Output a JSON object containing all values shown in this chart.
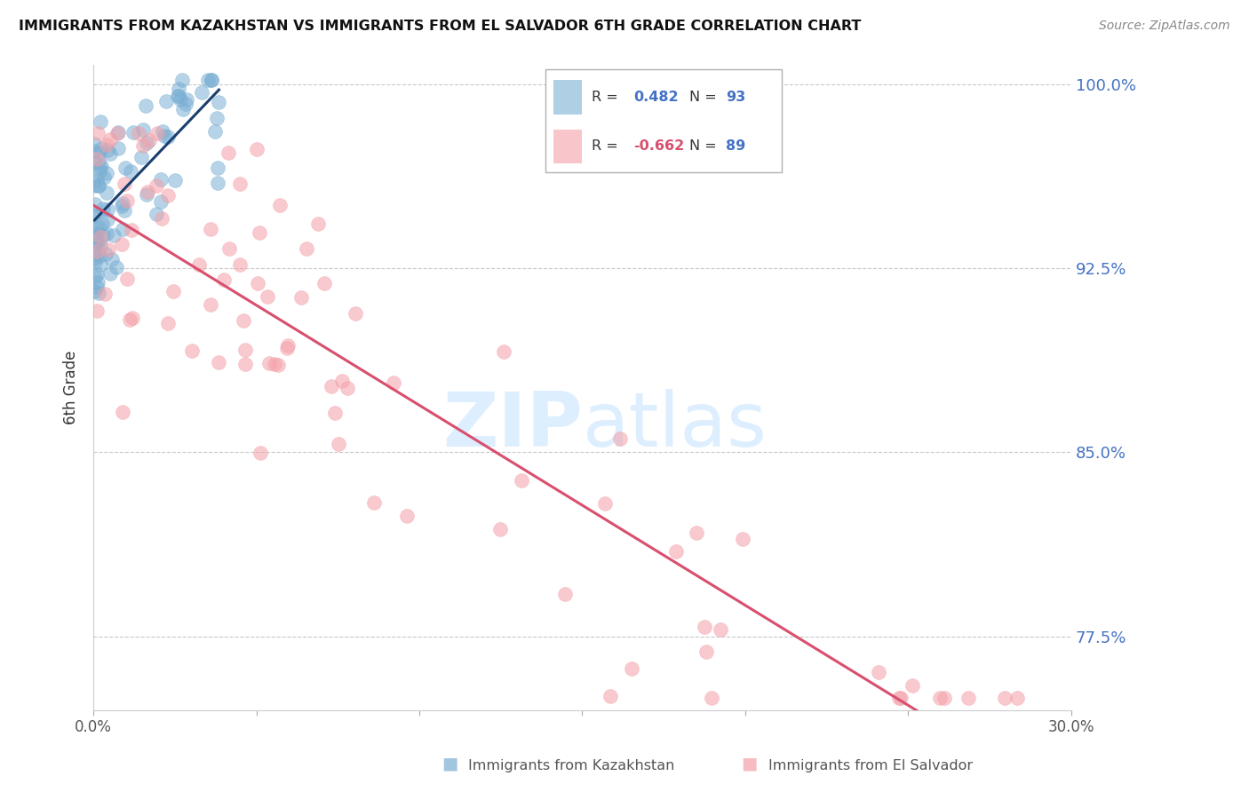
{
  "title": "IMMIGRANTS FROM KAZAKHSTAN VS IMMIGRANTS FROM EL SALVADOR 6TH GRADE CORRELATION CHART",
  "source": "Source: ZipAtlas.com",
  "ylabel": "6th Grade",
  "xlim": [
    0.0,
    0.3
  ],
  "ylim": [
    0.745,
    1.008
  ],
  "ytick_positions": [
    1.0,
    0.925,
    0.85,
    0.775
  ],
  "ytick_labels": [
    "100.0%",
    "92.5%",
    "85.0%",
    "77.5%"
  ],
  "kaz_R": 0.482,
  "kaz_N": 93,
  "sal_R": -0.662,
  "sal_N": 89,
  "blue_color": "#7bafd4",
  "blue_line_color": "#1a3f6f",
  "pink_color": "#f4a0a8",
  "pink_line_color": "#d94f6e",
  "watermark_color": "#ddeeff",
  "legend_label_kaz": "Immigrants from Kazakhstan",
  "legend_label_sal": "Immigrants from El Salvador",
  "kaz_seed": 12,
  "sal_seed": 7
}
